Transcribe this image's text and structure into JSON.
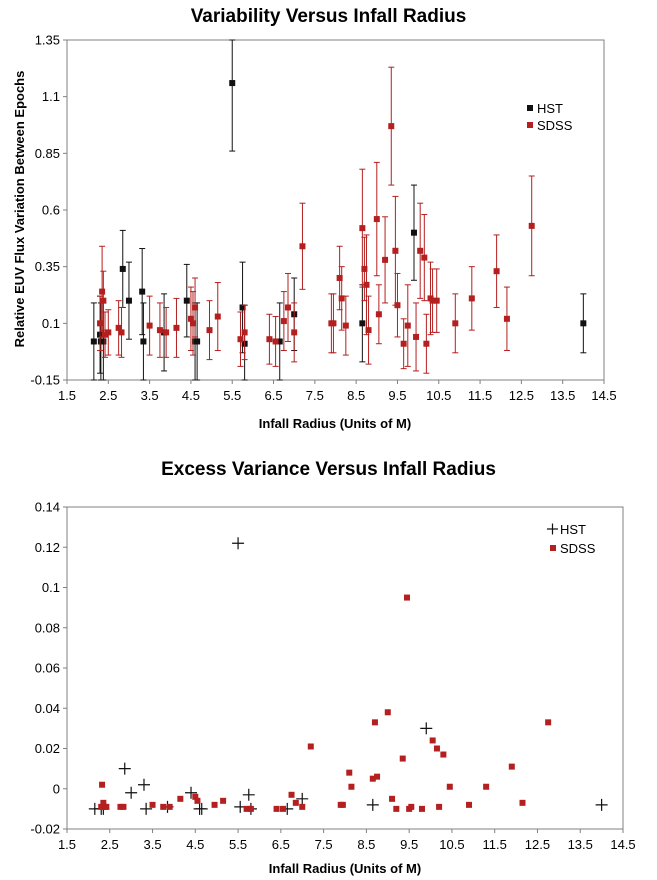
{
  "colors": {
    "hst": "#111111",
    "sdss": "#b41f1f",
    "axis": "#808080"
  },
  "chart_data": [
    {
      "type": "scatter",
      "title": "Variability Versus Infall Radius",
      "xlabel": "Infall Radius (Units of M)",
      "ylabel": "Relative EUV Flux Variation Between Epochs",
      "xlim": [
        1.5,
        14.5
      ],
      "ylim": [
        -0.15,
        1.35
      ],
      "xticks": [
        "1.5",
        "2.5",
        "3.5",
        "4.5",
        "5.5",
        "6.5",
        "7.5",
        "8.5",
        "9.5",
        "10.5",
        "11.5",
        "12.5",
        "13.5",
        "14.5"
      ],
      "yticks": [
        "-0.15",
        "0.1",
        "0.35",
        "0.6",
        "0.85",
        "1.1",
        "1.35"
      ],
      "grid": false,
      "legend": "top-right",
      "series": [
        {
          "name": "HST",
          "marker": "square",
          "error_bars": true,
          "x": [
            2.15,
            2.3,
            2.32,
            2.38,
            2.85,
            3.0,
            3.32,
            3.35,
            3.85,
            4.4,
            4.6,
            4.65,
            5.5,
            5.75,
            5.8,
            6.65,
            7.0,
            8.65,
            9.9,
            14.0
          ],
          "y": [
            0.02,
            0.05,
            0.02,
            0.02,
            0.34,
            0.2,
            0.24,
            0.02,
            0.06,
            0.2,
            0.02,
            0.02,
            1.16,
            0.17,
            0.01,
            0.02,
            0.14,
            0.1,
            0.5,
            0.1
          ],
          "err": [
            0.17,
            0.17,
            0.17,
            0.17,
            0.17,
            0.17,
            0.19,
            0.17,
            0.17,
            0.16,
            0.17,
            0.17,
            0.3,
            0.2,
            0.17,
            0.17,
            0.16,
            0.17,
            0.21,
            0.13
          ]
        },
        {
          "name": "SDSS",
          "marker": "square",
          "error_bars": true,
          "x": [
            2.3,
            2.35,
            2.38,
            2.42,
            2.5,
            2.75,
            2.82,
            3.5,
            3.75,
            3.9,
            4.15,
            4.5,
            4.55,
            4.6,
            4.95,
            5.15,
            5.7,
            5.8,
            6.4,
            6.55,
            6.75,
            6.85,
            7.0,
            7.2,
            7.9,
            7.95,
            8.1,
            8.15,
            8.25,
            8.65,
            8.7,
            8.75,
            8.8,
            9.0,
            9.05,
            9.2,
            9.35,
            9.45,
            9.5,
            9.65,
            9.75,
            9.95,
            10.05,
            10.15,
            10.2,
            10.3,
            10.35,
            10.45,
            10.9,
            11.3,
            11.9,
            12.15,
            12.75
          ],
          "y": [
            0.1,
            0.24,
            0.2,
            0.05,
            0.06,
            0.08,
            0.06,
            0.09,
            0.07,
            0.06,
            0.08,
            0.12,
            0.1,
            0.17,
            0.07,
            0.13,
            0.03,
            0.06,
            0.03,
            0.02,
            0.11,
            0.17,
            0.06,
            0.44,
            0.1,
            0.1,
            0.3,
            0.21,
            0.09,
            0.52,
            0.34,
            0.27,
            0.07,
            0.56,
            0.14,
            0.38,
            0.97,
            0.42,
            0.18,
            0.01,
            0.09,
            0.04,
            0.42,
            0.39,
            0.01,
            0.21,
            0.2,
            0.2,
            0.1,
            0.21,
            0.33,
            0.12,
            0.53
          ],
          "err": [
            0.12,
            0.2,
            0.13,
            0.1,
            0.1,
            0.12,
            0.11,
            0.13,
            0.12,
            0.11,
            0.13,
            0.14,
            0.14,
            0.13,
            0.13,
            0.15,
            0.12,
            0.12,
            0.11,
            0.11,
            0.13,
            0.15,
            0.13,
            0.19,
            0.13,
            0.13,
            0.14,
            0.14,
            0.13,
            0.26,
            0.14,
            0.22,
            0.15,
            0.25,
            0.13,
            0.19,
            0.26,
            0.24,
            0.14,
            0.11,
            0.18,
            0.15,
            0.21,
            0.19,
            0.13,
            0.16,
            0.14,
            0.14,
            0.13,
            0.14,
            0.16,
            0.14,
            0.22
          ]
        }
      ]
    },
    {
      "type": "scatter",
      "title": "Excess Variance Versus Infall Radius",
      "xlabel": "Infall Radius (Units of M)",
      "ylabel": "",
      "xlim": [
        1.5,
        14.5
      ],
      "ylim": [
        -0.02,
        0.14
      ],
      "xticks": [
        "1.5",
        "2.5",
        "3.5",
        "4.5",
        "5.5",
        "6.5",
        "7.5",
        "8.5",
        "9.5",
        "10.5",
        "11.5",
        "12.5",
        "13.5",
        "14.5"
      ],
      "yticks": [
        "-0.02",
        "0",
        "0.02",
        "0.04",
        "0.06",
        "0.08",
        "0.1",
        "0.12",
        "0.14"
      ],
      "grid": false,
      "legend": "top-right",
      "series": [
        {
          "name": "HST",
          "marker": "plus",
          "x": [
            2.15,
            2.3,
            2.35,
            2.85,
            3.0,
            3.3,
            3.35,
            3.85,
            4.4,
            4.6,
            4.65,
            5.5,
            5.55,
            5.75,
            5.8,
            6.65,
            7.0,
            8.65,
            9.9,
            14.0
          ],
          "y": [
            -0.01,
            -0.01,
            -0.01,
            0.01,
            -0.002,
            0.002,
            -0.01,
            -0.009,
            -0.002,
            -0.01,
            -0.01,
            0.122,
            -0.009,
            -0.003,
            -0.01,
            -0.01,
            -0.005,
            -0.008,
            0.03,
            -0.008
          ]
        },
        {
          "name": "SDSS",
          "marker": "square",
          "x": [
            2.3,
            2.32,
            2.35,
            2.38,
            2.42,
            2.75,
            2.82,
            3.5,
            3.75,
            3.9,
            4.15,
            4.5,
            4.55,
            4.95,
            5.15,
            5.7,
            5.8,
            6.4,
            6.55,
            6.75,
            6.85,
            7.0,
            7.2,
            7.9,
            7.95,
            8.1,
            8.15,
            8.65,
            8.7,
            8.75,
            9.0,
            9.1,
            9.2,
            9.35,
            9.45,
            9.5,
            9.55,
            9.8,
            10.05,
            10.15,
            10.2,
            10.3,
            10.45,
            10.9,
            11.3,
            11.9,
            12.15,
            12.75
          ],
          "y": [
            -0.009,
            0.002,
            -0.007,
            -0.009,
            -0.009,
            -0.009,
            -0.009,
            -0.008,
            -0.009,
            -0.009,
            -0.005,
            -0.004,
            -0.006,
            -0.008,
            -0.006,
            -0.01,
            -0.01,
            -0.01,
            -0.01,
            -0.003,
            -0.007,
            -0.009,
            0.021,
            -0.008,
            -0.008,
            0.008,
            0.001,
            0.005,
            0.033,
            0.006,
            0.038,
            -0.005,
            -0.01,
            0.015,
            0.095,
            -0.01,
            -0.009,
            -0.01,
            0.024,
            0.02,
            -0.009,
            0.017,
            0.001,
            -0.008,
            0.001,
            0.011,
            -0.007,
            0.033
          ]
        }
      ]
    }
  ]
}
